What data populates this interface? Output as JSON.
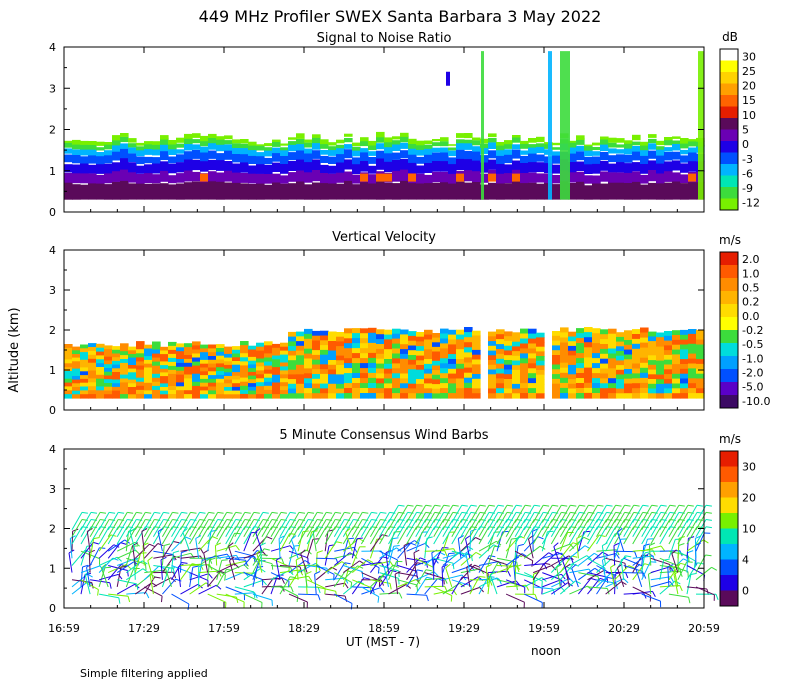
{
  "title": "449 MHz Profiler SWEX Santa Barbara  3 May 2022",
  "ylabel": "Altitude (km)",
  "xlabel": "UT  (MST - 7)",
  "noon_label": "noon",
  "footnote": "Simple filtering applied",
  "chart_data": [
    {
      "type": "heatmap",
      "title": "Signal to Noise Ratio",
      "ylabel": "Altitude (km)",
      "ylim": [
        0,
        4
      ],
      "y_ticks": [
        "0",
        "1",
        "2",
        "3",
        "4"
      ],
      "x_ticks": [
        "16:59",
        "17:29",
        "17:59",
        "18:29",
        "18:59",
        "19:29",
        "19:59",
        "20:29",
        "20:59"
      ],
      "data_altitude_range_km": [
        0.3,
        1.8
      ],
      "colorbar": {
        "unit": "dB",
        "labels": [
          "30",
          "25",
          "20",
          "15",
          "10",
          "5",
          "0",
          "-3",
          "-6",
          "-9",
          "-12"
        ],
        "colors": [
          "#ffffff",
          "#ffff00",
          "#ffd200",
          "#ffa000",
          "#ff6400",
          "#e61e00",
          "#5a0a5a",
          "#6a00b4",
          "#1e00e6",
          "#0050ff",
          "#00b4ff",
          "#00e6b4",
          "#3cdc3c",
          "#78f000"
        ]
      }
    },
    {
      "type": "heatmap",
      "title": "Vertical Velocity",
      "ylabel": "Altitude (km)",
      "ylim": [
        0,
        4
      ],
      "y_ticks": [
        "0",
        "1",
        "2",
        "3",
        "4"
      ],
      "x_ticks": [
        "16:59",
        "17:29",
        "17:59",
        "18:29",
        "18:59",
        "19:29",
        "19:59",
        "20:29",
        "20:59"
      ],
      "data_altitude_range_km": [
        0.3,
        2.0
      ],
      "colorbar": {
        "unit": "m/s",
        "labels": [
          "2.0",
          "1.0",
          "0.5",
          "0.2",
          "0.0",
          "-0.2",
          "-0.5",
          "-1.0",
          "-2.0",
          "-5.0",
          "-10.0"
        ],
        "colors": [
          "#e61e00",
          "#ff5a00",
          "#ff8c00",
          "#ffb400",
          "#ffdc00",
          "#ffff00",
          "#3cdc3c",
          "#00dcdc",
          "#00a0ff",
          "#0050ff",
          "#5a00c8",
          "#3c0a64"
        ]
      }
    },
    {
      "type": "wind_barbs",
      "title": "5 Minute Consensus Wind Barbs",
      "ylabel": "Altitude (km)",
      "ylim": [
        0,
        4
      ],
      "y_ticks": [
        "0",
        "1",
        "2",
        "3",
        "4"
      ],
      "x_ticks": [
        "16:59",
        "17:29",
        "17:59",
        "18:29",
        "18:59",
        "19:29",
        "19:59",
        "20:29",
        "20:59"
      ],
      "data_altitude_range_km": [
        0.3,
        2.3
      ],
      "colorbar": {
        "unit": "m/s",
        "labels": [
          "30",
          "20",
          "10",
          "4",
          "0"
        ],
        "colors": [
          "#e61e00",
          "#ff5a00",
          "#ffa000",
          "#ffdc00",
          "#78f000",
          "#00e6b4",
          "#00b4ff",
          "#0050ff",
          "#1e00e6",
          "#5a0a5a"
        ]
      }
    }
  ]
}
